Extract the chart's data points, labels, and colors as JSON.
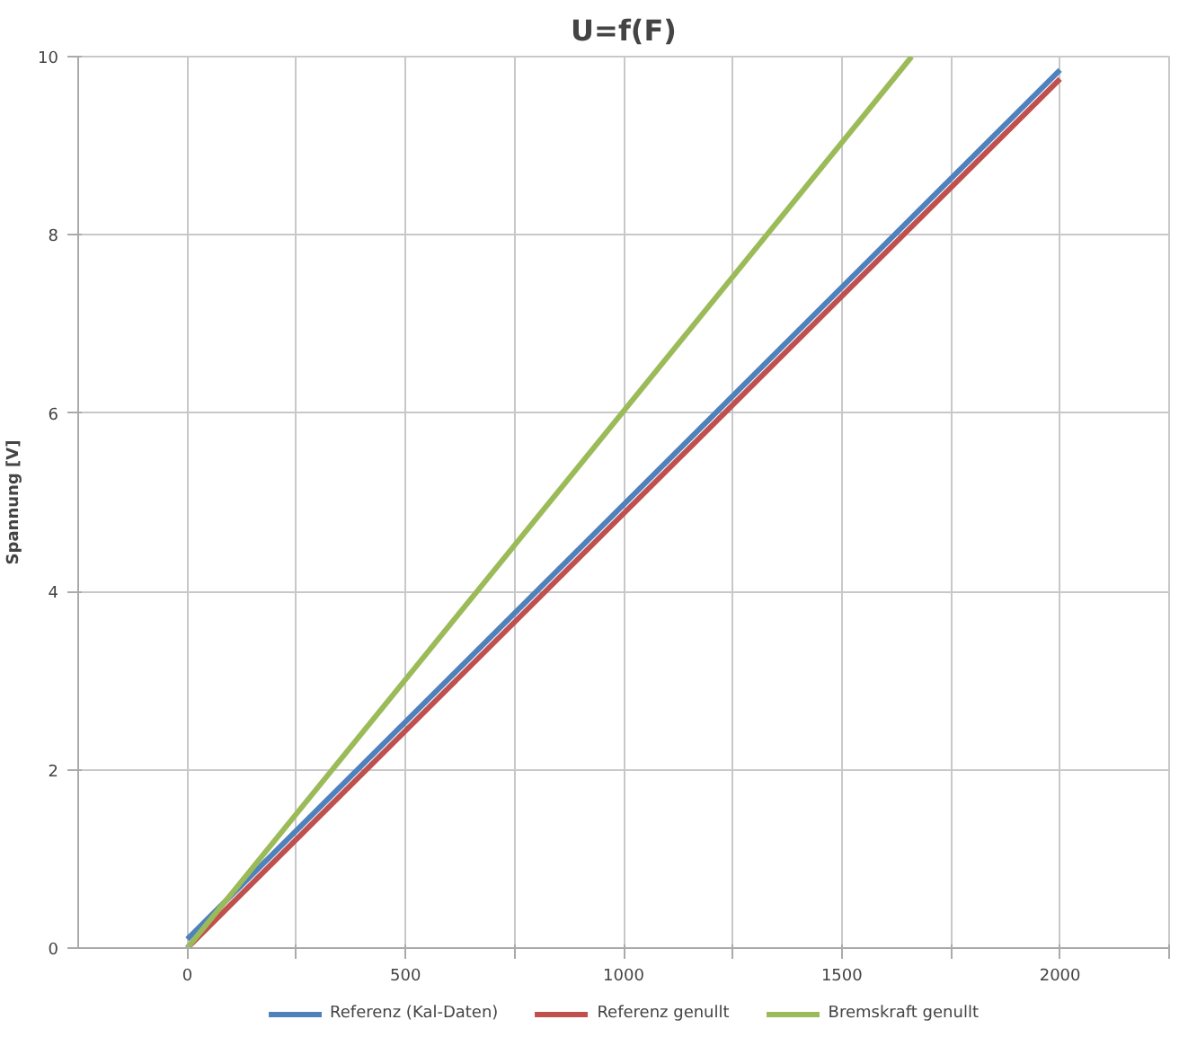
{
  "chart_data": {
    "type": "line",
    "title": "U=f(F)",
    "ylabel": "Spannung [V]",
    "xlim": [
      -250,
      2250
    ],
    "ylim": [
      0,
      10
    ],
    "xticks": [
      0,
      {
        "value": 250,
        "label": null
      },
      500,
      {
        "value": 750,
        "label": null
      },
      1000,
      {
        "value": 1250,
        "label": null
      },
      1500,
      {
        "value": 1750,
        "label": null
      },
      2000,
      {
        "value": 2250,
        "label": null
      }
    ],
    "yticks": [
      0,
      2,
      4,
      6,
      8,
      10
    ],
    "series": [
      {
        "name": "Referenz (Kal-Daten)",
        "color": "#4f81bd",
        "x": [
          0,
          2000
        ],
        "values": [
          0.1,
          9.85
        ]
      },
      {
        "name": "Referenz genullt",
        "color": "#c0504d",
        "x": [
          0,
          2000
        ],
        "values": [
          0,
          9.75
        ]
      },
      {
        "name": "Bremskraft genullt",
        "color": "#9bbb59",
        "x": [
          0,
          1660
        ],
        "values": [
          0,
          10
        ]
      }
    ],
    "grid": true,
    "legend": "bottom",
    "marker": "none",
    "line_style": "solid"
  }
}
